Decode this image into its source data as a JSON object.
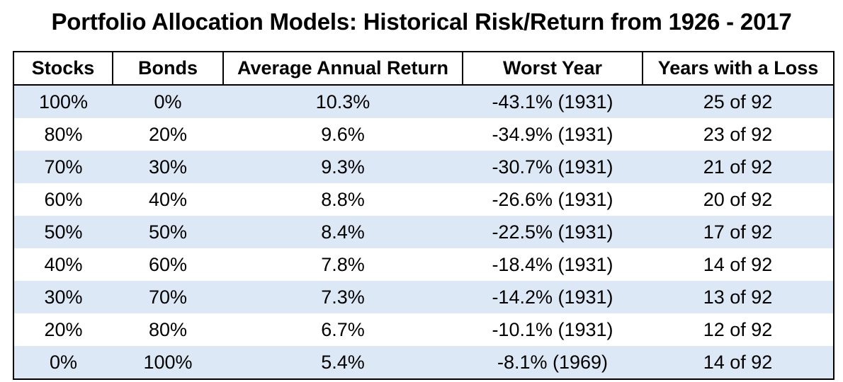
{
  "title": "Portfolio Allocation Models: Historical Risk/Return from 1926 - 2017",
  "colors": {
    "row_band": "#dde8f6",
    "border": "#000000"
  },
  "table": {
    "headers": [
      "Stocks",
      "Bonds",
      "Average Annual Return",
      "Worst Year",
      "Years with a Loss"
    ],
    "rows": [
      [
        "100%",
        "0%",
        "10.3%",
        "-43.1% (1931)",
        "25 of 92"
      ],
      [
        "80%",
        "20%",
        "9.6%",
        "-34.9% (1931)",
        "23 of 92"
      ],
      [
        "70%",
        "30%",
        "9.3%",
        "-30.7% (1931)",
        "21 of 92"
      ],
      [
        "60%",
        "40%",
        "8.8%",
        "-26.6% (1931)",
        "20 of 92"
      ],
      [
        "50%",
        "50%",
        "8.4%",
        "-22.5% (1931)",
        "17 of 92"
      ],
      [
        "40%",
        "60%",
        "7.8%",
        "-18.4% (1931)",
        "14 of 92"
      ],
      [
        "30%",
        "70%",
        "7.3%",
        "-14.2% (1931)",
        "13 of 92"
      ],
      [
        "20%",
        "80%",
        "6.7%",
        "-10.1% (1931)",
        "12 of 92"
      ],
      [
        "0%",
        "100%",
        "5.4%",
        "-8.1% (1969)",
        "14 of 92"
      ]
    ]
  }
}
